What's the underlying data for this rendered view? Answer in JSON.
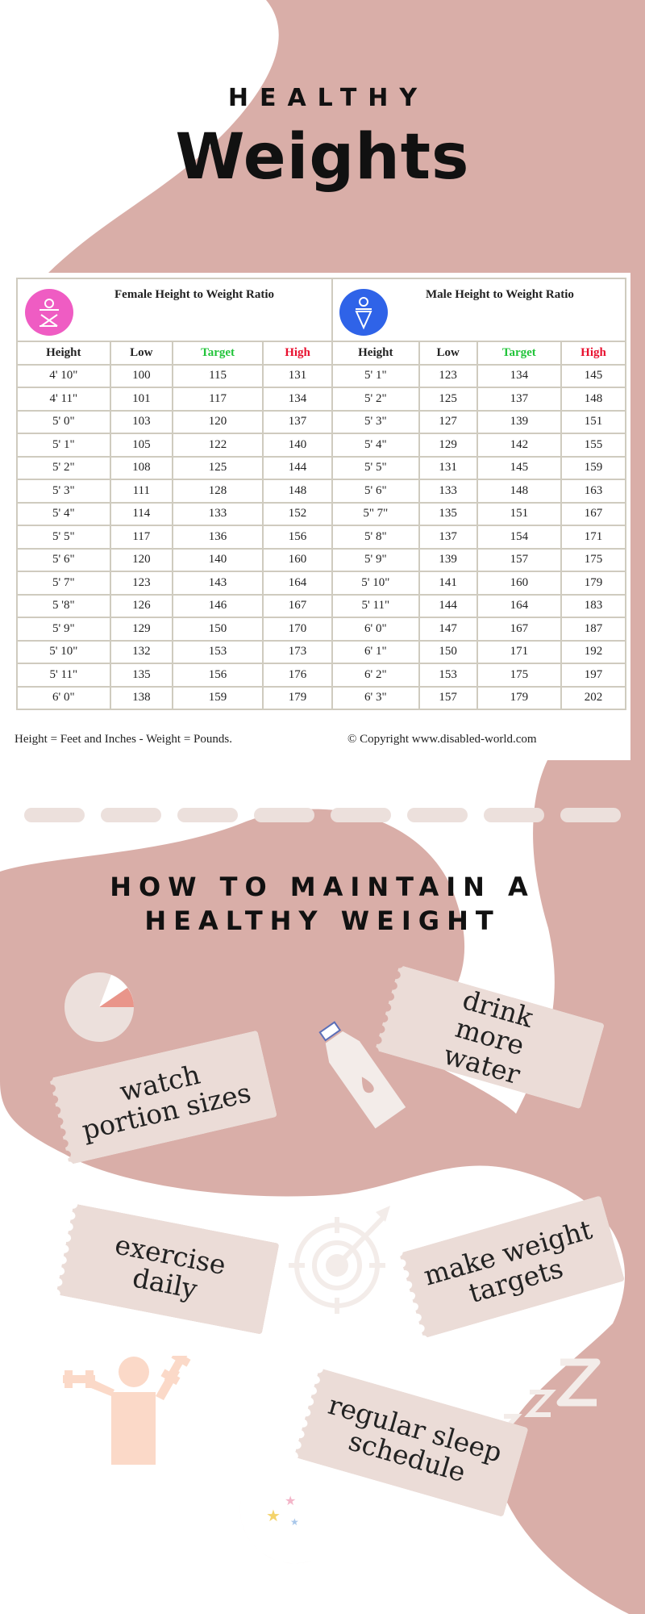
{
  "header": {
    "kicker": "HEALTHY",
    "title": "Weights"
  },
  "female": {
    "title": "Female Height to Weight Ratio",
    "icon": "female-symbol-icon",
    "color": "#ef5cc3",
    "columns": [
      "Height",
      "Low",
      "Target",
      "High"
    ],
    "rows": [
      [
        "4' 10\"",
        "100",
        "115",
        "131"
      ],
      [
        "4' 11\"",
        "101",
        "117",
        "134"
      ],
      [
        "5' 0\"",
        "103",
        "120",
        "137"
      ],
      [
        "5' 1\"",
        "105",
        "122",
        "140"
      ],
      [
        "5' 2\"",
        "108",
        "125",
        "144"
      ],
      [
        "5' 3\"",
        "111",
        "128",
        "148"
      ],
      [
        "5' 4\"",
        "114",
        "133",
        "152"
      ],
      [
        "5' 5\"",
        "117",
        "136",
        "156"
      ],
      [
        "5' 6\"",
        "120",
        "140",
        "160"
      ],
      [
        "5' 7\"",
        "123",
        "143",
        "164"
      ],
      [
        "5 '8\"",
        "126",
        "146",
        "167"
      ],
      [
        "5' 9\"",
        "129",
        "150",
        "170"
      ],
      [
        "5' 10\"",
        "132",
        "153",
        "173"
      ],
      [
        "5' 11\"",
        "135",
        "156",
        "176"
      ],
      [
        "6' 0\"",
        "138",
        "159",
        "179"
      ]
    ]
  },
  "male": {
    "title": "Male Height to Weight Ratio",
    "icon": "male-symbol-icon",
    "color": "#2f63e8",
    "columns": [
      "Height",
      "Low",
      "Target",
      "High"
    ],
    "rows": [
      [
        "5' 1\"",
        "123",
        "134",
        "145"
      ],
      [
        "5' 2\"",
        "125",
        "137",
        "148"
      ],
      [
        "5' 3\"",
        "127",
        "139",
        "151"
      ],
      [
        "5' 4\"",
        "129",
        "142",
        "155"
      ],
      [
        "5' 5\"",
        "131",
        "145",
        "159"
      ],
      [
        "5' 6\"",
        "133",
        "148",
        "163"
      ],
      [
        "5\" 7\"",
        "135",
        "151",
        "167"
      ],
      [
        "5' 8\"",
        "137",
        "154",
        "171"
      ],
      [
        "5' 9\"",
        "139",
        "157",
        "175"
      ],
      [
        "5' 10\"",
        "141",
        "160",
        "179"
      ],
      [
        "5' 11\"",
        "144",
        "164",
        "183"
      ],
      [
        "6' 0\"",
        "147",
        "167",
        "187"
      ],
      [
        "6' 1\"",
        "150",
        "171",
        "192"
      ],
      [
        "6' 2\"",
        "153",
        "175",
        "197"
      ],
      [
        "6' 3\"",
        "157",
        "179",
        "202"
      ]
    ]
  },
  "footnote": "Height = Feet and Inches - Weight = Pounds.",
  "copyright": "© Copyright www.disabled-world.com",
  "colors": {
    "blob": "#d9aea8",
    "card": "#ebdcd7",
    "target": "#22c43a",
    "high": "#e8102e"
  },
  "section2": {
    "line1": "HOW TO MAINTAIN A",
    "line2": "HEALTHY WEIGHT"
  },
  "tips": [
    {
      "text": "watch portion sizes",
      "icon": "pie-chart-icon"
    },
    {
      "text": "drink more water",
      "icon": "water-bottle-icon"
    },
    {
      "text": "exercise daily",
      "icon": "dumbbell-person-icon"
    },
    {
      "text": "make weight targets",
      "icon": "target-arrow-icon"
    },
    {
      "text": "regular sleep schedule",
      "icon": "moon-stars-icon"
    }
  ]
}
